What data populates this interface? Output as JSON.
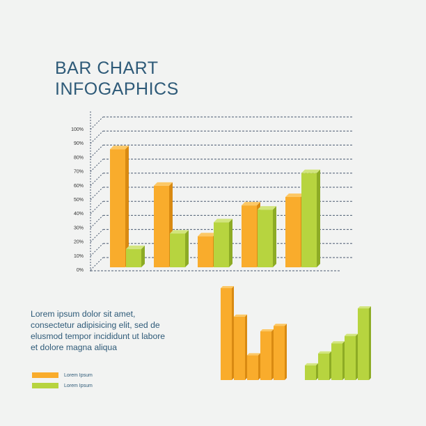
{
  "title_lines": [
    "BAR CHART",
    "INFOGAPHICS"
  ],
  "colors": {
    "orange": "#f9ac2c",
    "orange_side": "#d98a12",
    "orange_top": "#fcc866",
    "green": "#b7d43f",
    "green_side": "#8dab25",
    "green_top": "#d2e57d",
    "title": "#2e5a78",
    "grid": "#4a5a70"
  },
  "chart_data": [
    {
      "type": "bar",
      "title": "",
      "categories": [
        "",
        "",
        "",
        "",
        ""
      ],
      "yticks": [
        "0%",
        "10%",
        "20%",
        "30%",
        "40%",
        "50%",
        "60%",
        "70%",
        "80%",
        "90%",
        "100%"
      ],
      "ylim": [
        0,
        100
      ],
      "series": [
        {
          "name": "Lorem Ipsum",
          "color": "orange",
          "values": [
            84,
            58,
            22,
            44,
            50
          ]
        },
        {
          "name": "Lorem Ipsum",
          "color": "green",
          "values": [
            13,
            24,
            32,
            41,
            67
          ]
        }
      ]
    },
    {
      "type": "bar",
      "title": "",
      "categories": [
        "",
        "",
        "",
        "",
        ""
      ],
      "ylim": [
        0,
        100
      ],
      "series": [
        {
          "name": "",
          "color": "orange",
          "values": [
            100,
            69,
            27,
            53,
            59
          ]
        }
      ]
    },
    {
      "type": "bar",
      "title": "",
      "categories": [
        "",
        "",
        "",
        "",
        ""
      ],
      "ylim": [
        0,
        100
      ],
      "series": [
        {
          "name": "",
          "color": "green",
          "values": [
            16,
            29,
            40,
            48,
            78
          ]
        }
      ]
    }
  ],
  "description": "Lorem ipsum dolor sit amet, consectetur adipisicing elit, sed de elusmod tempor incididunt ut labore et dolore magna aliqua",
  "legend": [
    {
      "label": "Lorem Ipsum",
      "color": "orange"
    },
    {
      "label": "Lorem Ipsum",
      "color": "green"
    }
  ]
}
